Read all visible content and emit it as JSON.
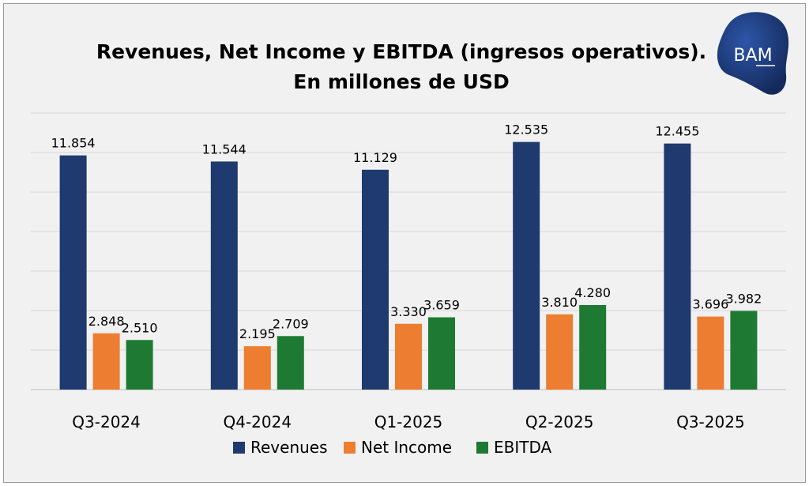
{
  "title": {
    "line1": "Revenues, Net Income y EBITDA (ingresos operativos).",
    "line2": "En millones de USD"
  },
  "logo": {
    "text": "BAM",
    "color": "#1e3a7a"
  },
  "chart_data": {
    "type": "bar",
    "categories": [
      "Q3-2024",
      "Q4-2024",
      "Q1-2025",
      "Q2-2025",
      "Q3-2025"
    ],
    "series": [
      {
        "name": "Revenues",
        "color": "#1f3a6e",
        "values": [
          11854,
          11544,
          11129,
          12535,
          12455
        ],
        "labels": [
          "11.854",
          "11.544",
          "11.129",
          "12.535",
          "12.455"
        ]
      },
      {
        "name": "Net Income",
        "color": "#ed7d31",
        "values": [
          2848,
          2195,
          3330,
          3810,
          3696
        ],
        "labels": [
          "2.848",
          "2.195",
          "3.330",
          "3.810",
          "3.696"
        ]
      },
      {
        "name": "EBITDA",
        "color": "#1e7a32",
        "values": [
          2510,
          2709,
          3659,
          4280,
          3982
        ],
        "labels": [
          "2.510",
          "2.709",
          "3.659",
          "4.280",
          "3.982"
        ]
      }
    ],
    "ylim": [
      0,
      14000
    ],
    "grid": true,
    "legend_position": "bottom"
  }
}
